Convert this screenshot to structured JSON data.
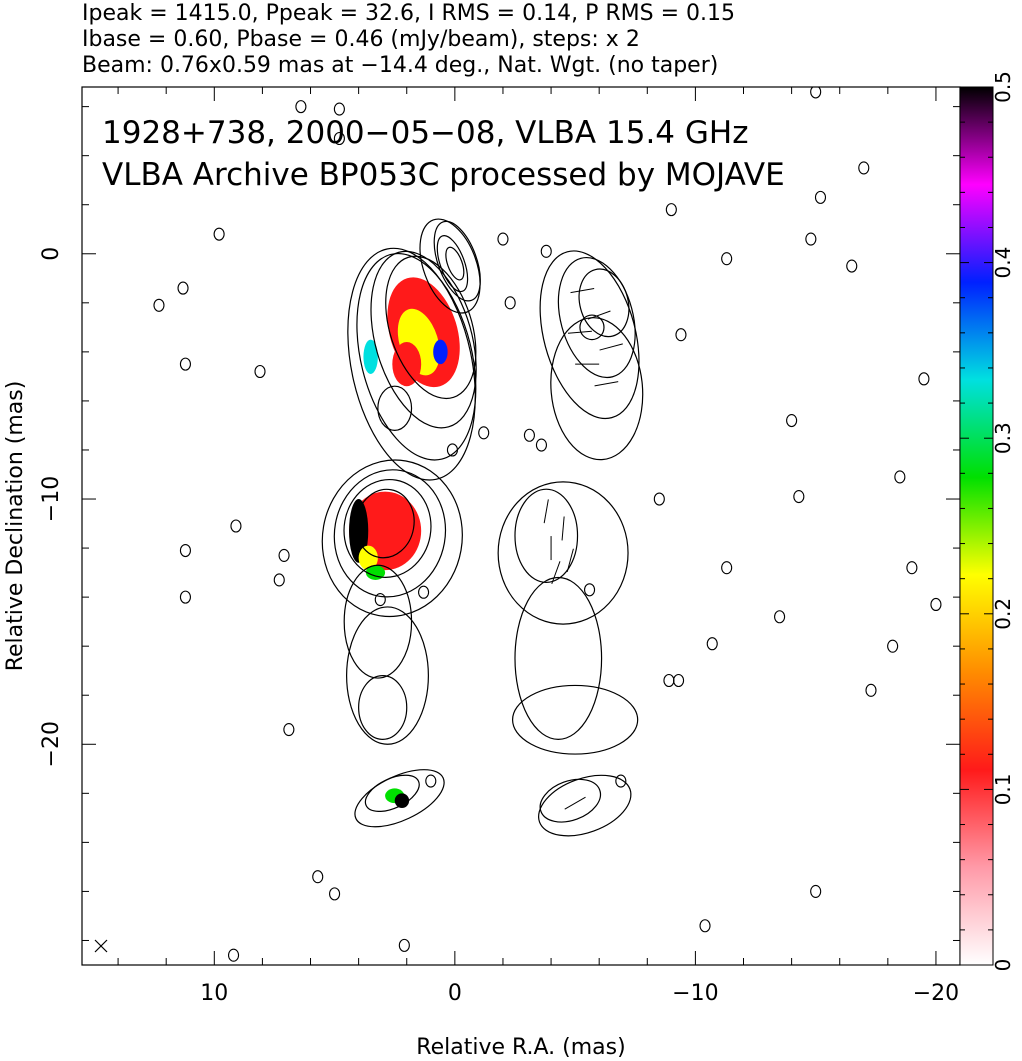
{
  "header": {
    "line1": "Ipeak = 1415.0, Ppeak = 32.6, I RMS = 0.14, P RMS = 0.15",
    "line2": "Ibase = 0.60, Pbase = 0.46 (mJy/beam), steps: x 2",
    "line3": "Beam: 0.76x0.59 mas at −14.4 deg., Nat. Wgt. (no taper)"
  },
  "chart_data": {
    "type": "heatmap",
    "title": "1928+738, 2000−05−08, VLBA 15.4 GHz",
    "subtitle": "VLBA Archive BP053C processed by MOJAVE",
    "xlabel": "Relative R.A. (mas)",
    "ylabel": "Relative Declination (mas)",
    "xlim": [
      15.5,
      -21
    ],
    "ylim": [
      -29,
      6.8
    ],
    "x_ticks": [
      {
        "value": 10,
        "label": "10"
      },
      {
        "value": 0,
        "label": "0"
      },
      {
        "value": -10,
        "label": "−10"
      },
      {
        "value": -20,
        "label": "−20"
      }
    ],
    "y_ticks": [
      {
        "value": 0,
        "label": "0"
      },
      {
        "value": -10,
        "label": "−10"
      },
      {
        "value": -20,
        "label": "−20"
      }
    ],
    "colorbar": {
      "min": 0,
      "max": 0.5,
      "ticks": [
        {
          "value": 0,
          "label": "0"
        },
        {
          "value": 0.1,
          "label": "0.1"
        },
        {
          "value": 0.2,
          "label": "0.2"
        },
        {
          "value": 0.3,
          "label": "0.3"
        },
        {
          "value": 0.4,
          "label": "0.4"
        },
        {
          "value": 0.5,
          "label": "0.5"
        }
      ],
      "stops": [
        "#ffffff",
        "#ff9aa8",
        "#ff1a1a",
        "#ff8c00",
        "#ffff00",
        "#00e000",
        "#00e0e0",
        "#0020ff",
        "#ff00ff",
        "#000000"
      ]
    },
    "total_intensity_components": [
      {
        "x": 0.2,
        "y": -0.5,
        "rx": 1.1,
        "ry": 2.0,
        "angle": -20
      },
      {
        "x": -0.1,
        "y": -0.3,
        "rx": 0.8,
        "ry": 1.7,
        "angle": -20
      },
      {
        "x": 0.1,
        "y": -0.4,
        "rx": 0.5,
        "ry": 1.2,
        "angle": -20
      },
      {
        "x": 0.0,
        "y": -0.4,
        "rx": 0.3,
        "ry": 0.7,
        "angle": -20
      },
      {
        "x": 1.0,
        "y": -3.0,
        "rx": 1.7,
        "ry": 3.0,
        "angle": -18
      },
      {
        "x": 1.3,
        "y": -3.5,
        "rx": 2.0,
        "ry": 3.7,
        "angle": -16
      },
      {
        "x": 1.6,
        "y": -4.2,
        "rx": 2.3,
        "ry": 4.3,
        "angle": -14
      },
      {
        "x": 1.8,
        "y": -4.5,
        "rx": 2.5,
        "ry": 4.8,
        "angle": -12
      },
      {
        "x": 2.5,
        "y": -6.3,
        "rx": 0.7,
        "ry": 0.9,
        "angle": 0
      },
      {
        "x": 2.9,
        "y": -11.0,
        "rx": 1.2,
        "ry": 1.4,
        "angle": 10
      },
      {
        "x": 2.8,
        "y": -11.2,
        "rx": 1.8,
        "ry": 2.0,
        "angle": 10
      },
      {
        "x": 2.7,
        "y": -11.4,
        "rx": 2.3,
        "ry": 2.6,
        "angle": 10
      },
      {
        "x": 2.6,
        "y": -11.6,
        "rx": 2.9,
        "ry": 3.2,
        "angle": 10
      },
      {
        "x": 3.2,
        "y": -15.0,
        "rx": 1.4,
        "ry": 2.3,
        "angle": 0
      },
      {
        "x": 2.8,
        "y": -17.2,
        "rx": 1.7,
        "ry": 2.8,
        "angle": 0
      },
      {
        "x": 3.0,
        "y": -18.5,
        "rx": 1.0,
        "ry": 1.3,
        "angle": 0
      },
      {
        "x": 2.3,
        "y": -22.2,
        "rx": 2.0,
        "ry": 0.9,
        "angle": -25
      },
      {
        "x": 2.6,
        "y": -22.0,
        "rx": 1.2,
        "ry": 0.6,
        "angle": -25
      }
    ],
    "polarized_intensity_components": [
      {
        "x": -6.2,
        "y": -2.0,
        "rx": 1.0,
        "ry": 1.4,
        "angle": -15
      },
      {
        "x": -5.9,
        "y": -2.6,
        "rx": 1.5,
        "ry": 2.5,
        "angle": -15
      },
      {
        "x": -5.6,
        "y": -3.3,
        "rx": 1.9,
        "ry": 3.5,
        "angle": -15
      },
      {
        "x": -5.9,
        "y": -5.5,
        "rx": 1.9,
        "ry": 2.9,
        "angle": -5
      },
      {
        "x": -5.7,
        "y": -3.0,
        "rx": 0.5,
        "ry": 0.5,
        "angle": 0
      },
      {
        "x": -3.8,
        "y": -11.5,
        "rx": 1.3,
        "ry": 1.9,
        "angle": 0
      },
      {
        "x": -4.5,
        "y": -12.2,
        "rx": 2.7,
        "ry": 2.9,
        "angle": 0
      },
      {
        "x": -4.3,
        "y": -16.5,
        "rx": 1.8,
        "ry": 3.3,
        "angle": 0
      },
      {
        "x": -5.0,
        "y": -19.0,
        "rx": 2.6,
        "ry": 1.4,
        "angle": 0
      },
      {
        "x": -4.8,
        "y": -22.3,
        "rx": 1.3,
        "ry": 0.8,
        "angle": -20
      },
      {
        "x": -5.4,
        "y": -22.5,
        "rx": 2.0,
        "ry": 1.1,
        "angle": -20
      }
    ],
    "fractional_polarization_regions": [
      {
        "x": 0.2,
        "y": -0.9,
        "rx": 0.9,
        "ry": 1.6,
        "angle": -20,
        "value": 0.01
      },
      {
        "x": 1.3,
        "y": -3.2,
        "rx": 1.4,
        "ry": 2.3,
        "angle": -17,
        "value": 0.12
      },
      {
        "x": 1.5,
        "y": -3.6,
        "rx": 0.8,
        "ry": 1.4,
        "angle": -17,
        "value": 0.2
      },
      {
        "x": 2.0,
        "y": -4.5,
        "rx": 0.6,
        "ry": 0.9,
        "angle": 0,
        "value": 0.09
      },
      {
        "x": 3.5,
        "y": -4.2,
        "rx": 0.3,
        "ry": 0.7,
        "angle": 0,
        "value": 0.35
      },
      {
        "x": 0.6,
        "y": -4.0,
        "rx": 0.3,
        "ry": 0.5,
        "angle": 0,
        "value": 0.4
      },
      {
        "x": 2.9,
        "y": -11.3,
        "rx": 1.5,
        "ry": 1.6,
        "angle": 0,
        "value": 0.1
      },
      {
        "x": 4.0,
        "y": -11.3,
        "rx": 0.4,
        "ry": 1.3,
        "angle": 0,
        "value": 0.5
      },
      {
        "x": 3.6,
        "y": -12.4,
        "rx": 0.4,
        "ry": 0.5,
        "angle": 0,
        "value": 0.23
      },
      {
        "x": 3.3,
        "y": -13.0,
        "rx": 0.4,
        "ry": 0.3,
        "angle": 0,
        "value": 0.3
      },
      {
        "x": 2.5,
        "y": -22.1,
        "rx": 0.4,
        "ry": 0.3,
        "angle": 0,
        "value": 0.25
      },
      {
        "x": 2.2,
        "y": -22.3,
        "rx": 0.3,
        "ry": 0.3,
        "angle": 0,
        "value": 0.5
      }
    ],
    "evpa_vectors": [
      {
        "x": -5.3,
        "y": -1.5,
        "angle": 80
      },
      {
        "x": -6.0,
        "y": -2.5,
        "angle": 70
      },
      {
        "x": -5.2,
        "y": -3.2,
        "angle": 85
      },
      {
        "x": -6.5,
        "y": -3.8,
        "angle": 75
      },
      {
        "x": -5.5,
        "y": -4.5,
        "angle": 90
      },
      {
        "x": -6.3,
        "y": -5.3,
        "angle": 80
      },
      {
        "x": -3.8,
        "y": -10.5,
        "angle": 10
      },
      {
        "x": -4.5,
        "y": -11.2,
        "angle": 5
      },
      {
        "x": -4.0,
        "y": -12.0,
        "angle": 0
      },
      {
        "x": -4.8,
        "y": -12.5,
        "angle": 15
      },
      {
        "x": -4.2,
        "y": -13.0,
        "angle": 20
      },
      {
        "x": -5.0,
        "y": -22.4,
        "angle": 60
      }
    ],
    "noise_contours": [
      {
        "x": 9.8,
        "y": 0.8
      },
      {
        "x": 12.3,
        "y": -2.1
      },
      {
        "x": 11.3,
        "y": -1.4
      },
      {
        "x": 11.2,
        "y": -4.5
      },
      {
        "x": 8.1,
        "y": -4.8
      },
      {
        "x": 6.4,
        "y": 6.0
      },
      {
        "x": 4.8,
        "y": 5.9
      },
      {
        "x": 9.1,
        "y": -11.1
      },
      {
        "x": 11.2,
        "y": -12.1
      },
      {
        "x": 11.2,
        "y": -14.0
      },
      {
        "x": 7.1,
        "y": -12.3
      },
      {
        "x": 7.3,
        "y": -13.3
      },
      {
        "x": 3.1,
        "y": -14.1
      },
      {
        "x": 1.3,
        "y": -13.8
      },
      {
        "x": -1.2,
        "y": -7.3
      },
      {
        "x": -3.1,
        "y": -7.4
      },
      {
        "x": -2.3,
        "y": -2.0
      },
      {
        "x": -9.4,
        "y": -3.3
      },
      {
        "x": -8.5,
        "y": -10.0
      },
      {
        "x": -14.3,
        "y": -9.9
      },
      {
        "x": -11.3,
        "y": -12.8
      },
      {
        "x": -13.5,
        "y": -14.8
      },
      {
        "x": -10.7,
        "y": -15.9
      },
      {
        "x": -9.3,
        "y": -17.4
      },
      {
        "x": -17.3,
        "y": -17.8
      },
      {
        "x": -18.2,
        "y": -16.0
      },
      {
        "x": -19.0,
        "y": -12.8
      },
      {
        "x": -20.0,
        "y": -14.3
      },
      {
        "x": -19.5,
        "y": -5.1
      },
      {
        "x": -18.5,
        "y": -9.1
      },
      {
        "x": -14.0,
        "y": -6.8
      },
      {
        "x": -9.0,
        "y": 1.8
      },
      {
        "x": -11.3,
        "y": -0.2
      },
      {
        "x": -14.8,
        "y": 0.6
      },
      {
        "x": -15.2,
        "y": 2.3
      },
      {
        "x": -17.0,
        "y": 3.5
      },
      {
        "x": -15.0,
        "y": 6.6
      },
      {
        "x": -16.5,
        "y": -0.5
      },
      {
        "x": 5.0,
        "y": -26.1
      },
      {
        "x": 5.7,
        "y": -25.4
      },
      {
        "x": 9.2,
        "y": -28.6
      },
      {
        "x": 2.1,
        "y": -28.2
      },
      {
        "x": -15.0,
        "y": -26.0
      },
      {
        "x": -10.4,
        "y": -27.4
      },
      {
        "x": 6.9,
        "y": -19.4
      },
      {
        "x": 1.0,
        "y": -21.5
      },
      {
        "x": -6.9,
        "y": -21.5
      },
      {
        "x": -8.9,
        "y": -17.4
      },
      {
        "x": -3.6,
        "y": -7.8
      },
      {
        "x": 0.1,
        "y": -8.0
      },
      {
        "x": 4.8,
        "y": 4.7
      },
      {
        "x": -3.8,
        "y": 0.1
      },
      {
        "x": -2.0,
        "y": 0.6
      },
      {
        "x": -5.6,
        "y": -13.7
      }
    ]
  }
}
